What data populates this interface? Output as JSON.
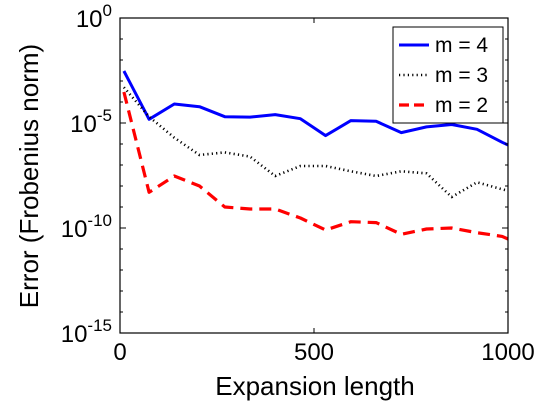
{
  "chart_data": {
    "type": "line",
    "xlabel": "Expansion length",
    "ylabel": "Error (Frobenius norm)",
    "xlim": [
      0,
      1000
    ],
    "ylim": [
      1e-15,
      1
    ],
    "yscale": "log",
    "grid": false,
    "legend_position": "top-right",
    "x_ticks": [
      "0",
      "500",
      "1000"
    ],
    "x_tick_values": [
      0,
      500,
      1000
    ],
    "y_ticks": [
      {
        "value": 1,
        "base": "10",
        "exp": "0"
      },
      {
        "value": 1e-05,
        "base": "10",
        "exp": "-5"
      },
      {
        "value": 1e-10,
        "base": "10",
        "exp": "-10"
      },
      {
        "value": 1e-15,
        "base": "10",
        "exp": "-15"
      }
    ],
    "x": [
      10,
      75,
      140,
      205,
      270,
      335,
      400,
      465,
      530,
      595,
      660,
      725,
      790,
      855,
      920,
      985,
      1000
    ],
    "series": [
      {
        "name": "m = 4",
        "color": "#0000ff",
        "dash": "solid",
        "values": [
          0.003,
          1.5e-05,
          8e-05,
          6e-05,
          2e-05,
          1.9e-05,
          2.5e-05,
          1.6e-05,
          2.5e-06,
          1.3e-05,
          1.2e-05,
          3.5e-06,
          6.5e-06,
          8.5e-06,
          5e-06,
          1.2e-06,
          9e-07
        ]
      },
      {
        "name": "m = 3",
        "color": "#000000",
        "dash": "dotted",
        "values": [
          0.0005,
          2e-05,
          2e-06,
          3e-07,
          4e-07,
          2.5e-07,
          3e-08,
          9e-08,
          9e-08,
          5e-08,
          3e-08,
          5e-08,
          4e-08,
          3e-09,
          1.5e-08,
          7e-09,
          6e-09
        ]
      },
      {
        "name": "m = 2",
        "color": "#ff0000",
        "dash": "dashed",
        "values": [
          0.0003,
          5e-09,
          3e-08,
          1e-08,
          1e-09,
          8e-10,
          8e-10,
          3e-10,
          8e-11,
          2e-10,
          1.8e-10,
          5e-11,
          9e-11,
          1e-10,
          6e-11,
          4e-11,
          3e-11
        ]
      }
    ]
  }
}
